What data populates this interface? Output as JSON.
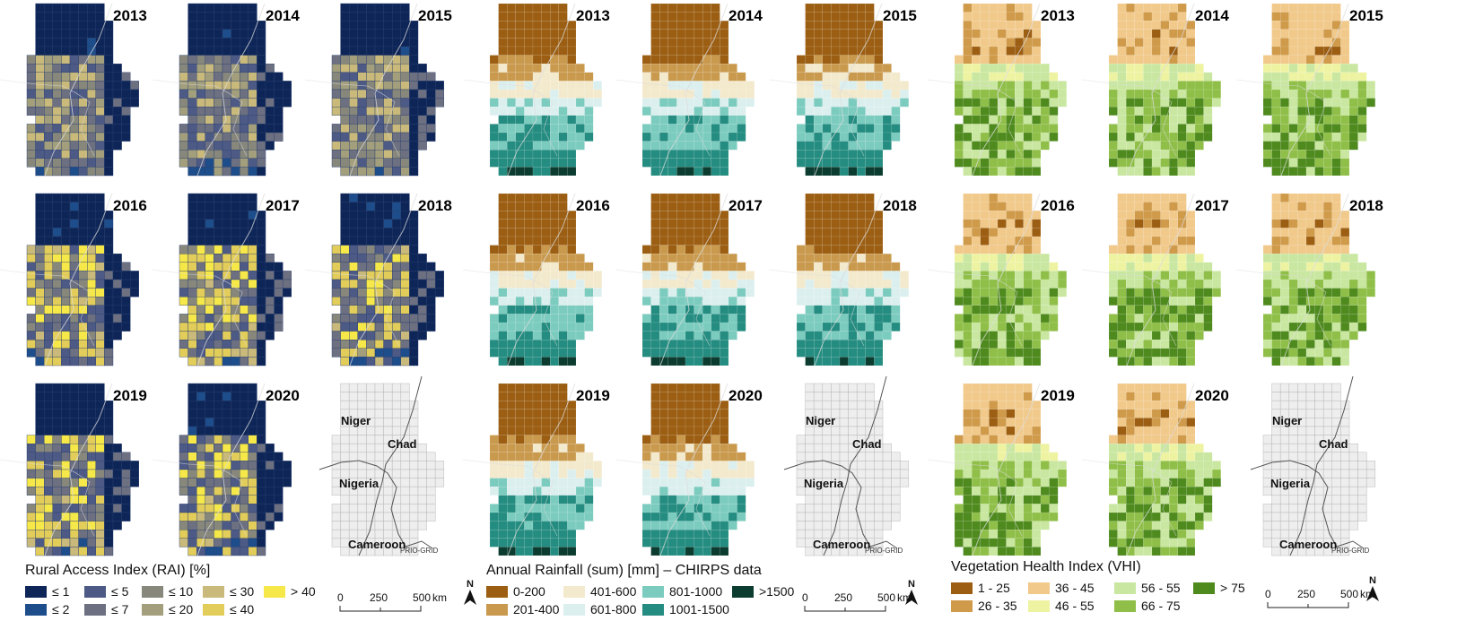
{
  "panels": [
    {
      "id": "rai",
      "legend_title": "Rural Access Index (RAI) [%]",
      "classes": [
        {
          "label": "≤ 1",
          "color": "#0d2557"
        },
        {
          "label": "≤ 2",
          "color": "#1d4d8a"
        },
        {
          "label": "≤ 5",
          "color": "#4d5a86"
        },
        {
          "label": "≤ 7",
          "color": "#6d7080"
        },
        {
          "label": "≤ 10",
          "color": "#87877c"
        },
        {
          "label": "≤ 20",
          "color": "#a39f7c"
        },
        {
          "label": "≤ 30",
          "color": "#c9b97a"
        },
        {
          "label": "≤ 40",
          "color": "#e3cd5a"
        },
        {
          "label": "> 40",
          "color": "#f7e84a"
        }
      ],
      "years": [
        "2013",
        "2014",
        "2015",
        "2016",
        "2017",
        "2018",
        "2019",
        "2020"
      ]
    },
    {
      "id": "rainfall",
      "legend_title": "Annual Rainfall (sum) [mm] – CHIRPS data",
      "classes": [
        {
          "label": "0-200",
          "color": "#9b5e12"
        },
        {
          "label": "201-400",
          "color": "#c99a4e"
        },
        {
          "label": "401-600",
          "color": "#f3e9cc"
        },
        {
          "label": "601-800",
          "color": "#dcefef"
        },
        {
          "label": "801-1000",
          "color": "#7ccbbf"
        },
        {
          "label": "1001-1500",
          "color": "#248c80"
        },
        {
          "label": ">1500",
          "color": "#0b3c2f"
        }
      ],
      "years": [
        "2013",
        "2014",
        "2015",
        "2016",
        "2017",
        "2018",
        "2019",
        "2020"
      ]
    },
    {
      "id": "vhi",
      "legend_title": "Vegetation Health Index (VHI)",
      "classes": [
        {
          "label": "1 - 25",
          "color": "#9b5e12"
        },
        {
          "label": "26 - 35",
          "color": "#cf9a4a"
        },
        {
          "label": "36 - 45",
          "color": "#f1c98a"
        },
        {
          "label": "46 - 55",
          "color": "#eef3a2"
        },
        {
          "label": "56 - 55",
          "color": "#c9e7a0"
        },
        {
          "label": "66 - 75",
          "color": "#8fbf48"
        },
        {
          "label": "> 75",
          "color": "#4f8a1e"
        }
      ],
      "years": [
        "2013",
        "2014",
        "2015",
        "2016",
        "2017",
        "2018",
        "2019",
        "2020"
      ]
    }
  ],
  "reference_map": {
    "countries": [
      "Niger",
      "Chad",
      "Nigeria",
      "Cameroon"
    ],
    "source": "PRIO-GRID"
  },
  "scale_bar": {
    "ticks": [
      "0",
      "250",
      "500"
    ],
    "unit": "km"
  },
  "north_arrow": {
    "label": "N"
  }
}
